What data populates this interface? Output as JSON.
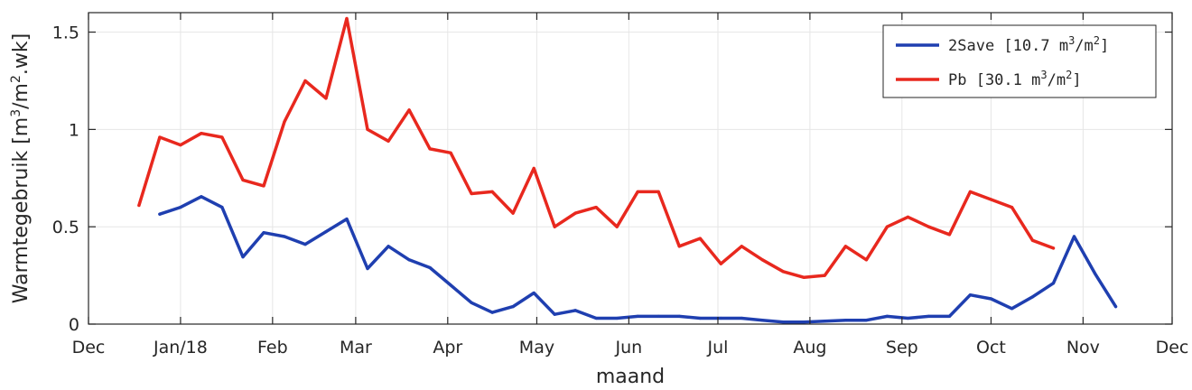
{
  "chart_data": {
    "type": "line",
    "title": "",
    "xlabel": "maand",
    "ylabel_prefix": "Warmtegebruik [m",
    "ylabel_sup1": "3",
    "ylabel_mid": "/m",
    "ylabel_sup2": "2",
    "ylabel_suffix": ".wk]",
    "x_is_date": true,
    "xlim": [
      "2017-12-01",
      "2018-12-01"
    ],
    "ylim": [
      0,
      1.6
    ],
    "grid": true,
    "legend_position": "top-right",
    "x_ticks": [
      {
        "date": "2017-12-01",
        "label": "Dec"
      },
      {
        "date": "2018-01-01",
        "label": "Jan/18"
      },
      {
        "date": "2018-02-01",
        "label": "Feb"
      },
      {
        "date": "2018-03-01",
        "label": "Mar"
      },
      {
        "date": "2018-04-01",
        "label": "Apr"
      },
      {
        "date": "2018-05-01",
        "label": "May"
      },
      {
        "date": "2018-06-01",
        "label": "Jun"
      },
      {
        "date": "2018-07-01",
        "label": "Jul"
      },
      {
        "date": "2018-08-01",
        "label": "Aug"
      },
      {
        "date": "2018-09-01",
        "label": "Sep"
      },
      {
        "date": "2018-10-01",
        "label": "Oct"
      },
      {
        "date": "2018-11-01",
        "label": "Nov"
      },
      {
        "date": "2018-12-01",
        "label": "Dec"
      }
    ],
    "y_ticks": [
      {
        "value": 0,
        "label": "0"
      },
      {
        "value": 0.5,
        "label": "0.5"
      },
      {
        "value": 1,
        "label": "1"
      },
      {
        "value": 1.5,
        "label": "1.5"
      }
    ],
    "series": [
      {
        "name": "2Save [10.7 m³/m²]",
        "legend_prefix": "2Save [10.7 m",
        "legend_sup1": "3",
        "legend_mid": "/m",
        "legend_sup2": "2",
        "legend_suffix": "]",
        "color": "#1f3fb0",
        "points": [
          [
            "2017-12-25",
            0.565
          ],
          [
            "2018-01-01",
            0.6
          ],
          [
            "2018-01-08",
            0.655
          ],
          [
            "2018-01-15",
            0.6
          ],
          [
            "2018-01-22",
            0.345
          ],
          [
            "2018-01-29",
            0.47
          ],
          [
            "2018-02-05",
            0.45
          ],
          [
            "2018-02-12",
            0.41
          ],
          [
            "2018-02-19",
            0.475
          ],
          [
            "2018-02-26",
            0.54
          ],
          [
            "2018-03-05",
            0.285
          ],
          [
            "2018-03-12",
            0.4
          ],
          [
            "2018-03-19",
            0.33
          ],
          [
            "2018-03-26",
            0.29
          ],
          [
            "2018-04-02",
            0.2
          ],
          [
            "2018-04-09",
            0.11
          ],
          [
            "2018-04-16",
            0.06
          ],
          [
            "2018-04-23",
            0.09
          ],
          [
            "2018-04-30",
            0.16
          ],
          [
            "2018-05-07",
            0.05
          ],
          [
            "2018-05-14",
            0.07
          ],
          [
            "2018-05-21",
            0.03
          ],
          [
            "2018-05-28",
            0.03
          ],
          [
            "2018-06-04",
            0.04
          ],
          [
            "2018-06-11",
            0.04
          ],
          [
            "2018-06-18",
            0.04
          ],
          [
            "2018-06-25",
            0.03
          ],
          [
            "2018-07-02",
            0.03
          ],
          [
            "2018-07-09",
            0.03
          ],
          [
            "2018-07-16",
            0.02
          ],
          [
            "2018-07-23",
            0.01
          ],
          [
            "2018-07-30",
            0.01
          ],
          [
            "2018-08-06",
            0.015
          ],
          [
            "2018-08-13",
            0.02
          ],
          [
            "2018-08-20",
            0.02
          ],
          [
            "2018-08-27",
            0.04
          ],
          [
            "2018-09-03",
            0.03
          ],
          [
            "2018-09-10",
            0.04
          ],
          [
            "2018-09-17",
            0.04
          ],
          [
            "2018-09-24",
            0.15
          ],
          [
            "2018-10-01",
            0.13
          ],
          [
            "2018-10-08",
            0.08
          ],
          [
            "2018-10-15",
            0.14
          ],
          [
            "2018-10-22",
            0.21
          ],
          [
            "2018-10-29",
            0.45
          ],
          [
            "2018-11-05",
            0.26
          ],
          [
            "2018-11-12",
            0.09
          ]
        ]
      },
      {
        "name": "Pb [30.1 m³/m²]",
        "legend_prefix": "Pb [30.1 m",
        "legend_sup1": "3",
        "legend_mid": "/m",
        "legend_sup2": "2",
        "legend_suffix": "]",
        "color": "#e8281e",
        "points": [
          [
            "2017-12-18",
            0.61
          ],
          [
            "2017-12-25",
            0.96
          ],
          [
            "2018-01-01",
            0.92
          ],
          [
            "2018-01-08",
            0.98
          ],
          [
            "2018-01-15",
            0.96
          ],
          [
            "2018-01-22",
            0.74
          ],
          [
            "2018-01-29",
            0.71
          ],
          [
            "2018-02-05",
            1.04
          ],
          [
            "2018-02-12",
            1.25
          ],
          [
            "2018-02-19",
            1.16
          ],
          [
            "2018-02-26",
            1.57
          ],
          [
            "2018-03-05",
            1.0
          ],
          [
            "2018-03-12",
            0.94
          ],
          [
            "2018-03-19",
            1.1
          ],
          [
            "2018-03-26",
            0.9
          ],
          [
            "2018-04-02",
            0.88
          ],
          [
            "2018-04-09",
            0.67
          ],
          [
            "2018-04-16",
            0.68
          ],
          [
            "2018-04-23",
            0.57
          ],
          [
            "2018-04-30",
            0.8
          ],
          [
            "2018-05-07",
            0.5
          ],
          [
            "2018-05-14",
            0.57
          ],
          [
            "2018-05-21",
            0.6
          ],
          [
            "2018-05-28",
            0.5
          ],
          [
            "2018-06-04",
            0.68
          ],
          [
            "2018-06-11",
            0.68
          ],
          [
            "2018-06-18",
            0.4
          ],
          [
            "2018-06-25",
            0.44
          ],
          [
            "2018-07-02",
            0.31
          ],
          [
            "2018-07-09",
            0.4
          ],
          [
            "2018-07-16",
            0.33
          ],
          [
            "2018-07-23",
            0.27
          ],
          [
            "2018-07-30",
            0.24
          ],
          [
            "2018-08-06",
            0.25
          ],
          [
            "2018-08-13",
            0.4
          ],
          [
            "2018-08-20",
            0.33
          ],
          [
            "2018-08-27",
            0.5
          ],
          [
            "2018-09-03",
            0.55
          ],
          [
            "2018-09-10",
            0.5
          ],
          [
            "2018-09-17",
            0.46
          ],
          [
            "2018-09-24",
            0.68
          ],
          [
            "2018-10-01",
            0.64
          ],
          [
            "2018-10-08",
            0.6
          ],
          [
            "2018-10-15",
            0.43
          ],
          [
            "2018-10-22",
            0.39
          ]
        ]
      }
    ]
  }
}
